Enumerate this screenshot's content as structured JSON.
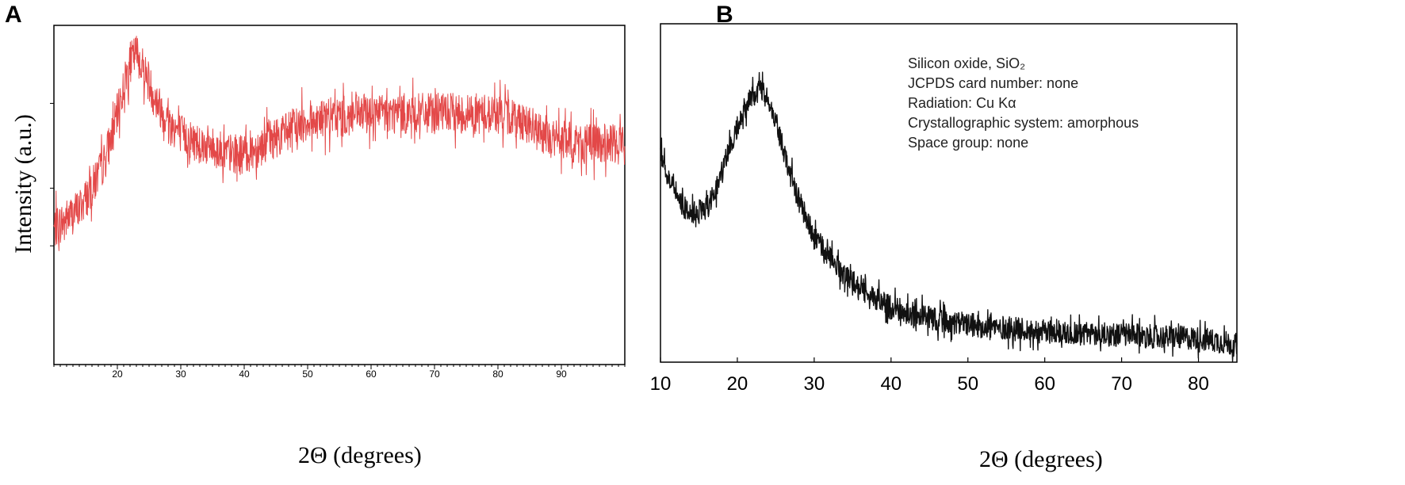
{
  "panels": {
    "a_label": "A",
    "b_label": "B"
  },
  "chart_data": [
    {
      "type": "line",
      "panel": "A",
      "xlabel": "2Θ (degrees)",
      "ylabel": "Intensity (a.u.)",
      "xlim": [
        10,
        100
      ],
      "ylim": [
        0,
        1
      ],
      "x_ticks": [
        20,
        30,
        40,
        50,
        60,
        70,
        80,
        90
      ],
      "y_tick_labels_shown": false,
      "color": "#e34848",
      "noise": 0.06,
      "series": [
        {
          "x": [
            10,
            12,
            14,
            16,
            18,
            19,
            20,
            21,
            22,
            23,
            24,
            25,
            26,
            28,
            30,
            32,
            35,
            38,
            40,
            42,
            45,
            48,
            50,
            55,
            60,
            65,
            70,
            75,
            78,
            80,
            82,
            84,
            86,
            88,
            90,
            93,
            96,
            100
          ],
          "values": [
            0.4,
            0.43,
            0.46,
            0.52,
            0.6,
            0.67,
            0.74,
            0.82,
            0.89,
            0.92,
            0.88,
            0.83,
            0.78,
            0.72,
            0.68,
            0.66,
            0.64,
            0.62,
            0.62,
            0.64,
            0.67,
            0.7,
            0.72,
            0.73,
            0.74,
            0.74,
            0.74,
            0.74,
            0.74,
            0.74,
            0.73,
            0.72,
            0.69,
            0.67,
            0.66,
            0.65,
            0.65,
            0.65
          ]
        }
      ]
    },
    {
      "type": "line",
      "panel": "B",
      "xlabel": "2Θ (degrees)",
      "xlim": [
        10,
        85
      ],
      "ylim": [
        0,
        1
      ],
      "x_ticks": [
        10,
        20,
        30,
        40,
        50,
        60,
        70,
        80
      ],
      "y_tick_labels_shown": false,
      "color": "#111111",
      "noise": 0.035,
      "annotations": [
        "Silicon oxide, SiO₂",
        "JCPDS card number: none",
        "Radiation: Cu Kα",
        "Crystallographic system: amorphous",
        "Space group: none"
      ],
      "series": [
        {
          "x": [
            10,
            11,
            12,
            13,
            14,
            15,
            16,
            17,
            18,
            19,
            20,
            21,
            22,
            23,
            24,
            25,
            26,
            27,
            28,
            29,
            30,
            32,
            34,
            36,
            38,
            40,
            45,
            50,
            55,
            60,
            65,
            70,
            75,
            80,
            83,
            85
          ],
          "values": [
            0.62,
            0.55,
            0.5,
            0.46,
            0.44,
            0.44,
            0.46,
            0.5,
            0.56,
            0.63,
            0.7,
            0.75,
            0.79,
            0.8,
            0.78,
            0.71,
            0.63,
            0.55,
            0.48,
            0.42,
            0.37,
            0.31,
            0.26,
            0.22,
            0.19,
            0.16,
            0.13,
            0.11,
            0.1,
            0.09,
            0.085,
            0.08,
            0.075,
            0.07,
            0.06,
            0.05
          ]
        }
      ]
    }
  ]
}
